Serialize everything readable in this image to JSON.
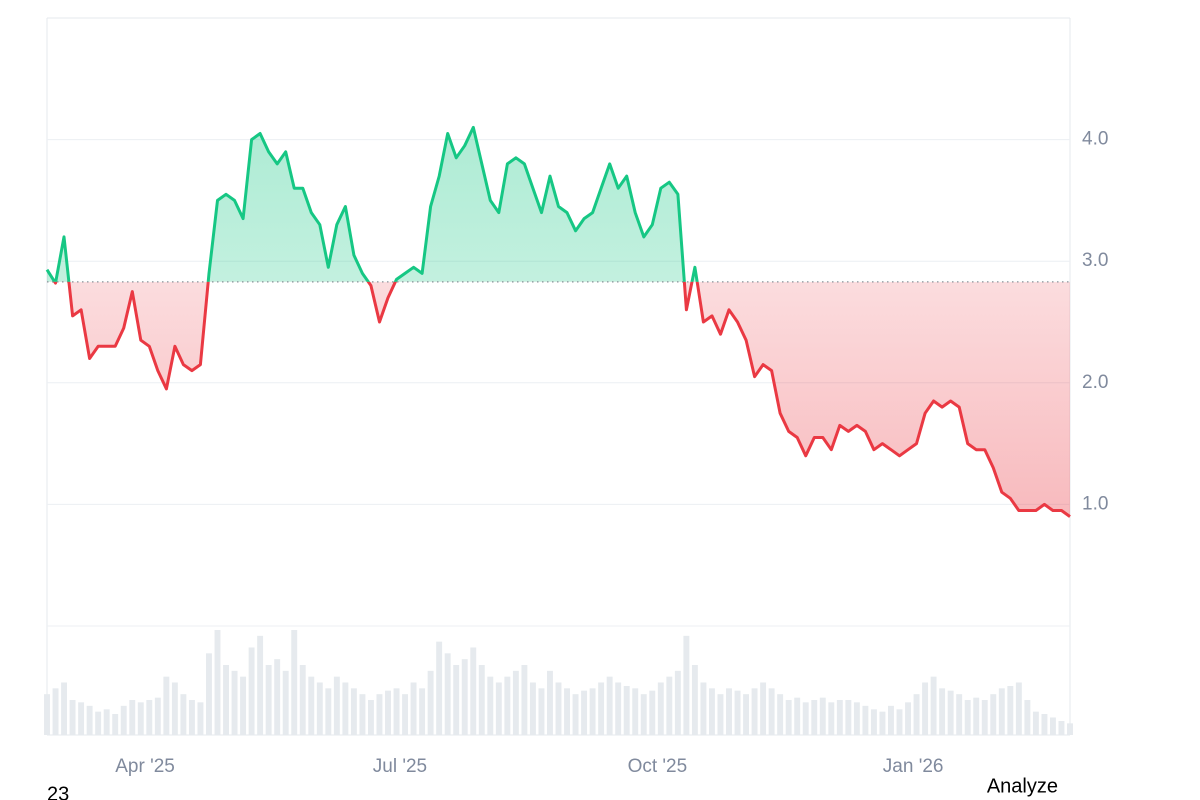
{
  "chart_data": {
    "type": "baseline-line",
    "values": [
      2.93,
      2.82,
      3.2,
      2.55,
      2.6,
      2.2,
      2.3,
      2.3,
      2.3,
      2.45,
      2.75,
      2.35,
      2.3,
      2.1,
      1.95,
      2.3,
      2.15,
      2.1,
      2.15,
      2.9,
      3.5,
      3.55,
      3.5,
      3.35,
      4.0,
      4.05,
      3.9,
      3.8,
      3.9,
      3.6,
      3.6,
      3.4,
      3.3,
      2.95,
      3.3,
      3.45,
      3.05,
      2.9,
      2.8,
      2.5,
      2.7,
      2.85,
      2.9,
      2.95,
      2.9,
      3.45,
      3.7,
      4.05,
      3.85,
      3.95,
      4.1,
      3.8,
      3.5,
      3.4,
      3.8,
      3.85,
      3.8,
      3.6,
      3.4,
      3.7,
      3.45,
      3.4,
      3.25,
      3.35,
      3.4,
      3.6,
      3.8,
      3.6,
      3.7,
      3.4,
      3.2,
      3.3,
      3.6,
      3.65,
      3.55,
      2.6,
      2.95,
      2.5,
      2.55,
      2.4,
      2.6,
      2.5,
      2.35,
      2.05,
      2.15,
      2.1,
      1.75,
      1.6,
      1.55,
      1.4,
      1.55,
      1.55,
      1.45,
      1.65,
      1.6,
      1.65,
      1.6,
      1.45,
      1.5,
      1.45,
      1.4,
      1.45,
      1.5,
      1.75,
      1.85,
      1.8,
      1.85,
      1.8,
      1.5,
      1.45,
      1.45,
      1.3,
      1.1,
      1.05,
      0.95,
      0.95,
      0.95,
      1.0,
      0.95,
      0.95,
      0.9
    ],
    "volume": [
      35,
      40,
      45,
      30,
      28,
      25,
      20,
      22,
      18,
      25,
      30,
      28,
      30,
      32,
      50,
      45,
      35,
      30,
      28,
      70,
      90,
      60,
      55,
      50,
      75,
      85,
      60,
      65,
      55,
      90,
      60,
      50,
      45,
      40,
      50,
      45,
      40,
      35,
      30,
      35,
      38,
      40,
      35,
      45,
      40,
      55,
      80,
      70,
      60,
      65,
      75,
      60,
      50,
      45,
      50,
      55,
      60,
      45,
      40,
      55,
      45,
      40,
      35,
      38,
      40,
      45,
      50,
      45,
      42,
      40,
      35,
      38,
      45,
      50,
      55,
      85,
      60,
      45,
      40,
      35,
      40,
      38,
      35,
      40,
      45,
      40,
      35,
      30,
      32,
      28,
      30,
      32,
      28,
      30,
      30,
      28,
      25,
      22,
      20,
      25,
      22,
      28,
      35,
      45,
      50,
      40,
      38,
      35,
      30,
      32,
      30,
      35,
      40,
      42,
      45,
      30,
      20,
      18,
      15,
      12,
      10
    ],
    "volume_color": "#e6eaee",
    "baseline": 2.83,
    "colors": {
      "above": "#16c784",
      "below": "#ea3943"
    },
    "xlim": [
      0,
      120
    ],
    "xticks": [
      {
        "value": 11.5,
        "label": "Apr '25"
      },
      {
        "value": 41.4,
        "label": "Jul '25"
      },
      {
        "value": 71.6,
        "label": "Oct '25"
      },
      {
        "value": 101.6,
        "label": "Jan '26"
      }
    ],
    "ylim": [
      0,
      5.0
    ],
    "yticks": [
      {
        "value": 1,
        "label": "1.0"
      },
      {
        "value": 2,
        "label": "2.0"
      },
      {
        "value": 3,
        "label": "3.0"
      },
      {
        "value": 4,
        "label": "4.0"
      }
    ],
    "grid": true
  },
  "footer_left": "23",
  "analyze_button": "Analyze"
}
